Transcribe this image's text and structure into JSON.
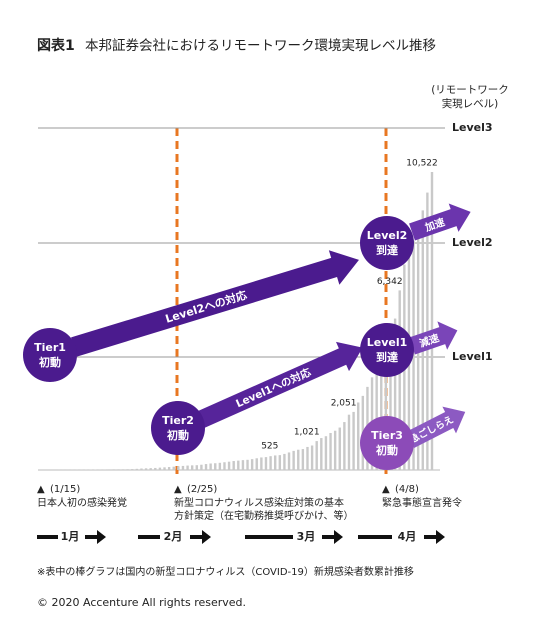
{
  "chart_data": {
    "type": "bar",
    "title_label": "図表1",
    "title": "本邦証券会社におけるリモートワーク環境実現レベル推移",
    "axis_label": [
      "(リモートワーク",
      "実現レベル)"
    ],
    "levels": [
      "Level3",
      "Level2",
      "Level1"
    ],
    "color": "#c9c9c9",
    "values": [
      1,
      1,
      1,
      1,
      2,
      3,
      4,
      5,
      7,
      8,
      11,
      14,
      17,
      20,
      20,
      23,
      25,
      25,
      26,
      28,
      33,
      41,
      53,
      59,
      66,
      73,
      84,
      94,
      105,
      117,
      132,
      144,
      156,
      164,
      170,
      186,
      210,
      230,
      239,
      254,
      274,
      293,
      317,
      331,
      348,
      360,
      384,
      414,
      443,
      455,
      488,
      514,
      525,
      568,
      619,
      675,
      716,
      739,
      814,
      865,
      1021,
      1128,
      1193,
      1307,
      1387,
      1499,
      1693,
      1953,
      2051,
      2384,
      2617,
      2935,
      3271,
      3654,
      3906,
      4257,
      4768,
      5347,
      6342,
      7255,
      7645,
      8100,
      8626,
      9167,
      9795,
      10522
    ],
    "value_labels": [
      null,
      null,
      null,
      null,
      null,
      null,
      null,
      null,
      null,
      null,
      null,
      null,
      null,
      null,
      null,
      null,
      null,
      null,
      null,
      null,
      null,
      null,
      null,
      null,
      null,
      null,
      null,
      null,
      null,
      null,
      null,
      null,
      null,
      null,
      null,
      null,
      null,
      null,
      null,
      null,
      null,
      null,
      null,
      null,
      null,
      null,
      null,
      null,
      null,
      null,
      null,
      null,
      "525",
      null,
      null,
      null,
      null,
      null,
      null,
      null,
      "1,021",
      null,
      null,
      null,
      null,
      null,
      null,
      null,
      "2,051",
      null,
      null,
      null,
      null,
      null,
      null,
      null,
      null,
      null,
      "6,342",
      null,
      null,
      null,
      null,
      null,
      null,
      "10,522"
    ],
    "stages": [
      [
        "Tier1",
        "初動"
      ],
      [
        "Tier2",
        "初動"
      ],
      [
        "Level2",
        "到達"
      ],
      [
        "Level1",
        "到達"
      ],
      [
        "Tier3",
        "初動"
      ]
    ],
    "arrows": [
      "Level2への対応",
      "Level1への対応",
      "加速",
      "減速",
      "急ごしらえ"
    ],
    "events": [
      {
        "marker": "▲",
        "date": "(1/15)",
        "lines": [
          "日本人初の感染発覚"
        ]
      },
      {
        "marker": "▲",
        "date": "(2/25)",
        "lines": [
          "新型コロナウィルス感染症対策の基本",
          "方針策定（在宅勤務推奨呼びかけ、等）"
        ]
      },
      {
        "marker": "▲",
        "date": "(4/8)",
        "lines": [
          "緊急事態宣言発令"
        ]
      }
    ],
    "months": [
      "1月",
      "2月",
      "3月",
      "4月"
    ],
    "footnote": "※表中の棒グラフは国内の新型コロナウィルス（COVID-19）新規感染者数累計推移",
    "copyright": "© 2020 Accenture All rights reserved."
  }
}
